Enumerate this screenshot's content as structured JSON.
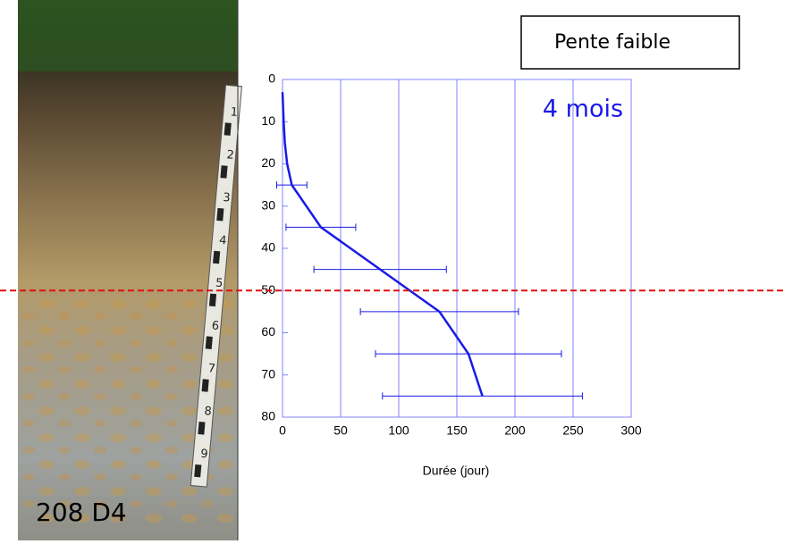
{
  "chart_data": {
    "type": "line",
    "box_label": "Pente faible",
    "annotation": "4 mois",
    "photo_label": "208 D4",
    "ruler_labels": [
      "1",
      "2",
      "3",
      "4",
      "5",
      "6",
      "7",
      "8",
      "9"
    ],
    "x_label": "Durée (jour)",
    "x": [
      0,
      1,
      2,
      4,
      8,
      33,
      84,
      135,
      160,
      172
    ],
    "values": [
      3,
      10,
      15,
      20,
      25,
      35,
      45,
      55,
      65,
      75
    ],
    "xerr": [
      null,
      null,
      null,
      null,
      13,
      30,
      57,
      68,
      80,
      86
    ],
    "color": "#1a1ae6",
    "reference_line": 50,
    "reference_color": "#e01010",
    "xlim": [
      0,
      300
    ],
    "xticks": [
      0,
      50,
      100,
      150,
      200,
      250,
      300
    ],
    "ylim": [
      80,
      0
    ],
    "yticks": [
      0,
      10,
      20,
      30,
      40,
      50,
      60,
      70,
      80
    ],
    "grid": true
  }
}
